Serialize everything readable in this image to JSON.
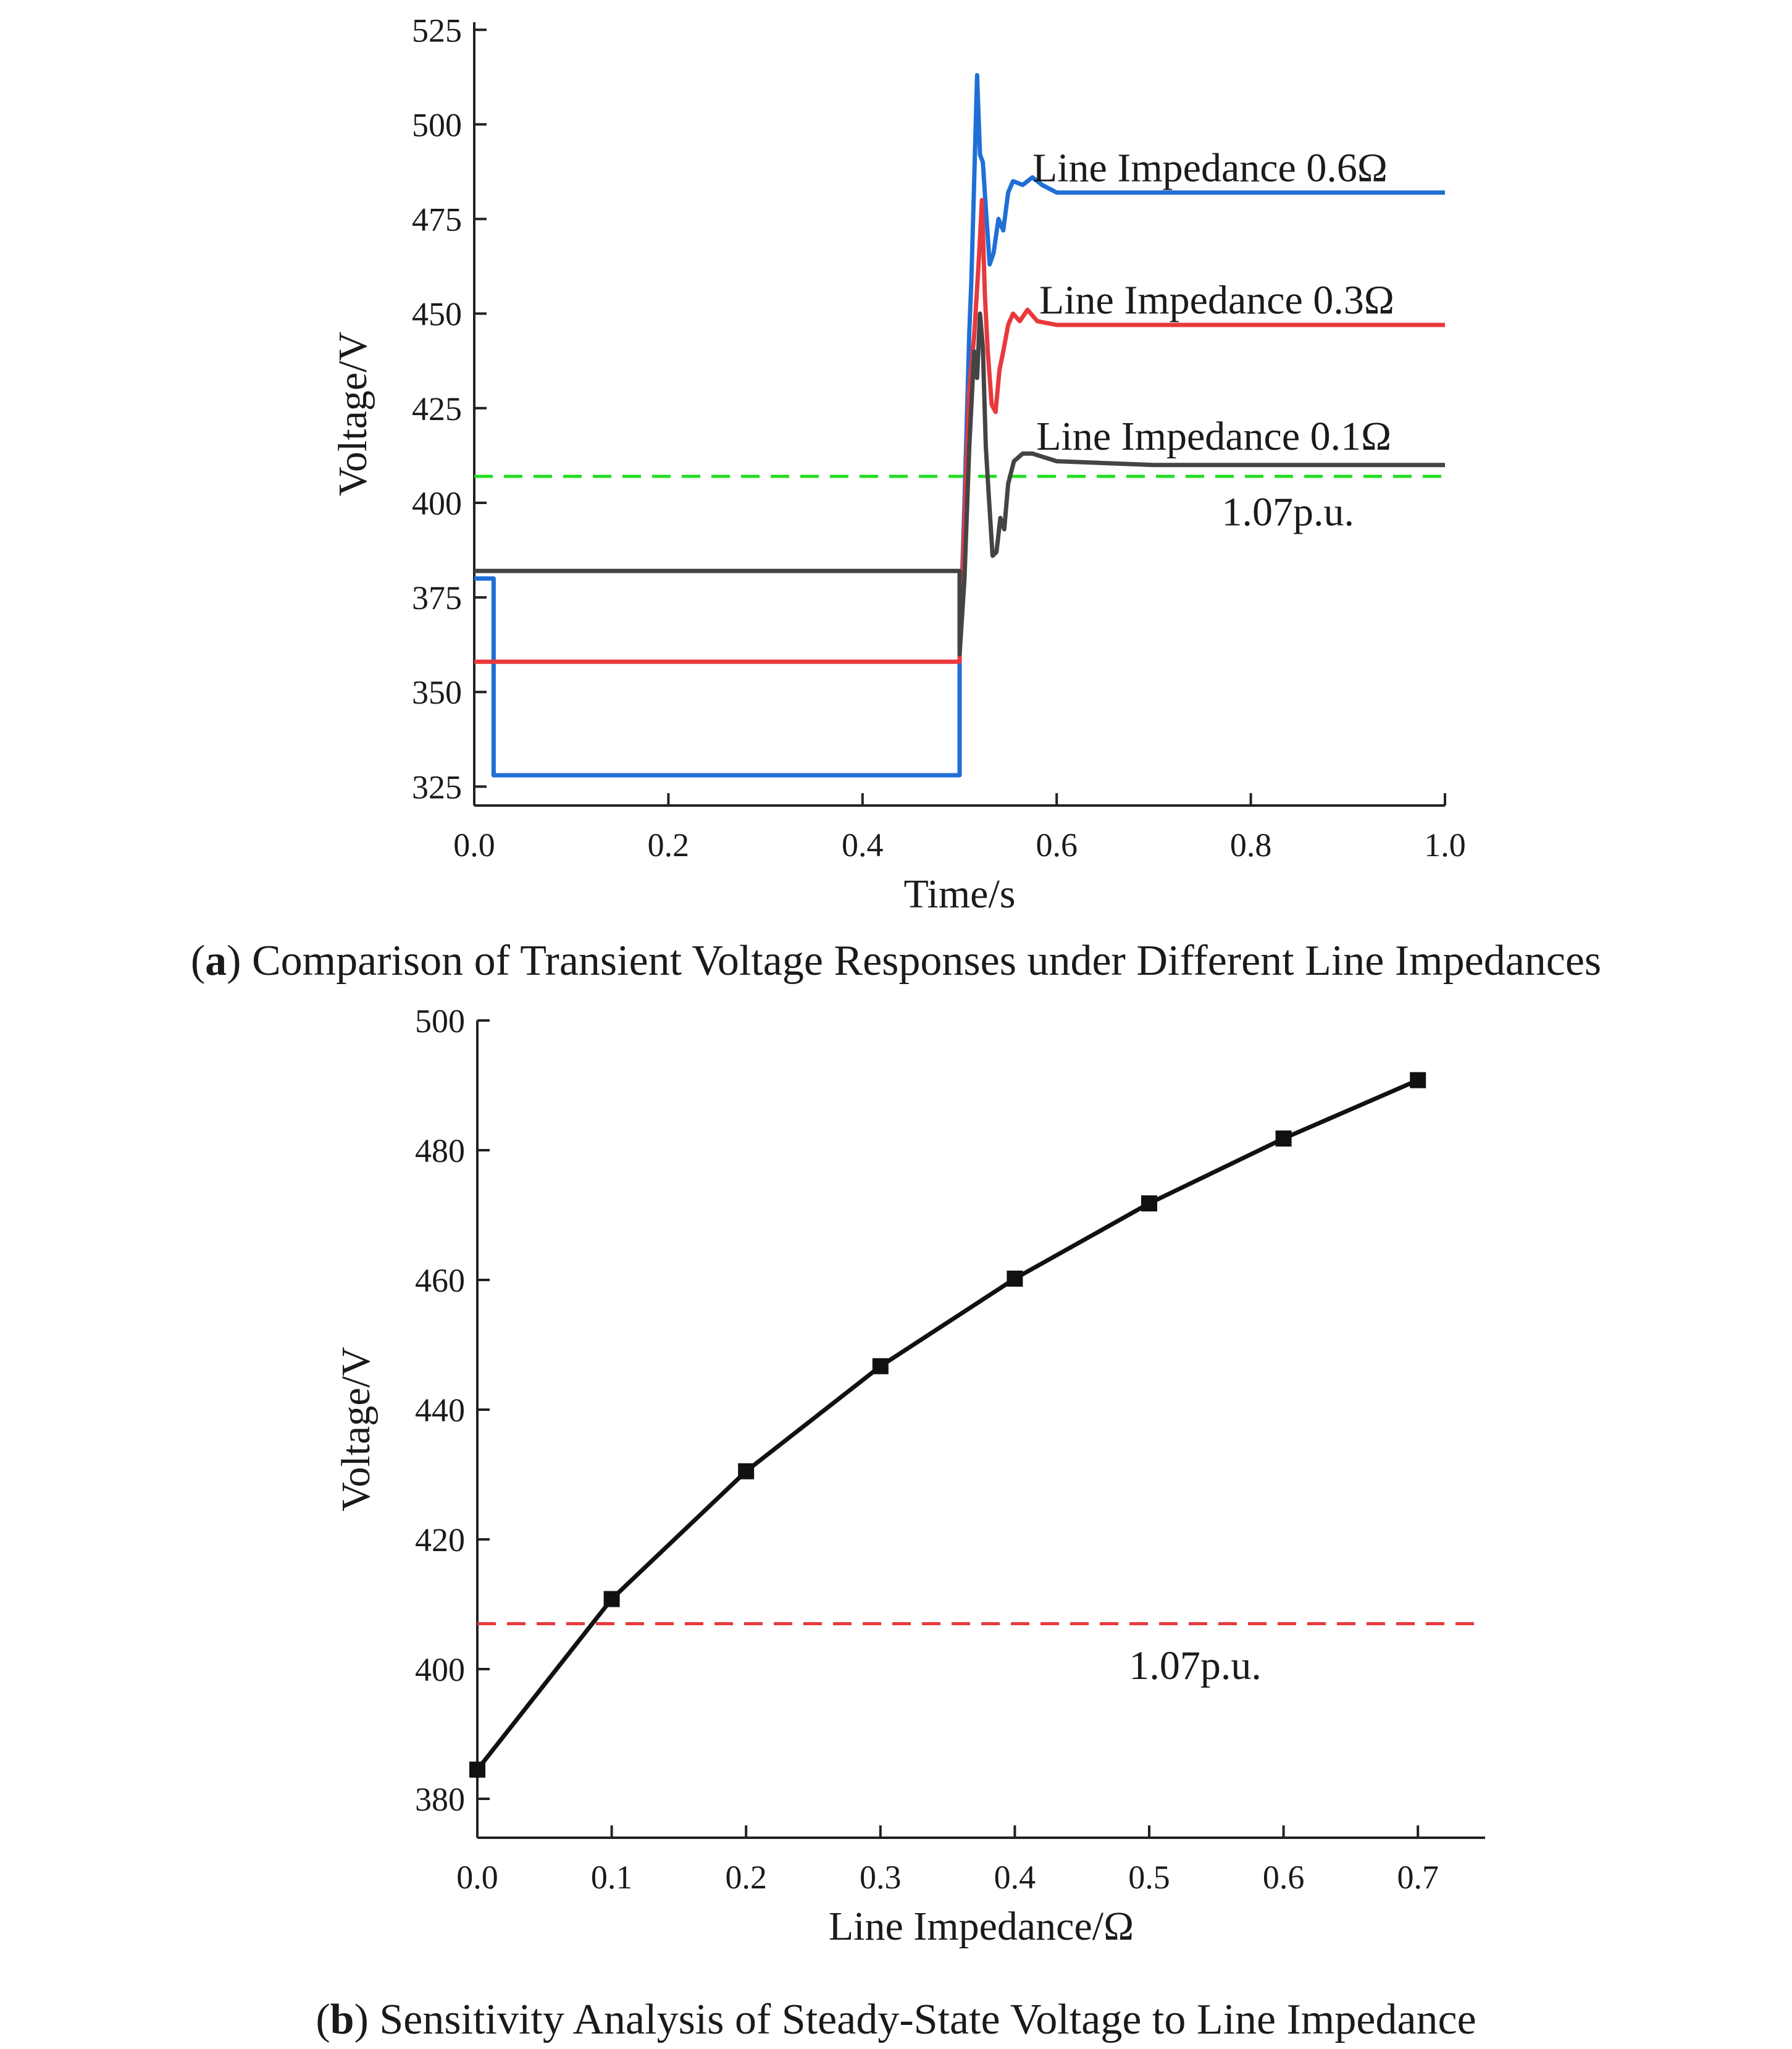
{
  "chart_data": [
    {
      "id": "a",
      "type": "line",
      "caption_letter": "a",
      "caption_text": "Comparison of Transient Voltage Responses under Different Line Impedances",
      "xlabel": "Time/s",
      "ylabel": "Voltage/V",
      "xlim": [
        0.0,
        1.0
      ],
      "ylim": [
        320,
        527
      ],
      "xticks": [
        "0.0",
        "0.2",
        "0.4",
        "0.6",
        "0.8",
        "1.0"
      ],
      "yticks": [
        "325",
        "350",
        "375",
        "400",
        "425",
        "450",
        "475",
        "500",
        "525"
      ],
      "grid": false,
      "reference_line": {
        "label": "1.07p.u.",
        "value": 407,
        "color": "#22dd22",
        "style": "dashed"
      },
      "series": [
        {
          "name": "Line Impedance  0.6Ω",
          "color": "#1f6fd6",
          "points": [
            [
              0.0,
              380
            ],
            [
              0.02,
              380
            ],
            [
              0.02,
              328
            ],
            [
              0.5,
              328
            ],
            [
              0.5,
              360
            ],
            [
              0.505,
              400
            ],
            [
              0.51,
              445
            ],
            [
              0.512,
              458
            ],
            [
              0.515,
              485
            ],
            [
              0.518,
              513
            ],
            [
              0.521,
              492
            ],
            [
              0.524,
              490
            ],
            [
              0.527,
              478
            ],
            [
              0.531,
              463
            ],
            [
              0.535,
              466
            ],
            [
              0.54,
              475
            ],
            [
              0.545,
              472
            ],
            [
              0.55,
              482
            ],
            [
              0.555,
              485
            ],
            [
              0.565,
              484
            ],
            [
              0.575,
              486
            ],
            [
              0.585,
              484
            ],
            [
              0.6,
              482
            ],
            [
              0.65,
              482
            ],
            [
              0.7,
              482
            ],
            [
              1.0,
              482
            ]
          ]
        },
        {
          "name": "Line Impedance 0.3Ω",
          "color": "#e8393d",
          "points": [
            [
              0.0,
              358
            ],
            [
              0.5,
              358
            ],
            [
              0.5,
              360
            ],
            [
              0.505,
              395
            ],
            [
              0.51,
              430
            ],
            [
              0.515,
              444
            ],
            [
              0.52,
              465
            ],
            [
              0.523,
              480
            ],
            [
              0.526,
              455
            ],
            [
              0.529,
              440
            ],
            [
              0.533,
              426
            ],
            [
              0.537,
              424
            ],
            [
              0.541,
              435
            ],
            [
              0.545,
              440
            ],
            [
              0.55,
              447
            ],
            [
              0.555,
              450
            ],
            [
              0.562,
              448
            ],
            [
              0.57,
              451
            ],
            [
              0.58,
              448
            ],
            [
              0.6,
              447
            ],
            [
              0.7,
              447
            ],
            [
              1.0,
              447
            ]
          ]
        },
        {
          "name": "Line Impedance 0.1Ω",
          "color": "#444444",
          "points": [
            [
              0.0,
              382
            ],
            [
              0.5,
              382
            ],
            [
              0.5,
              360
            ],
            [
              0.505,
              380
            ],
            [
              0.51,
              415
            ],
            [
              0.515,
              440
            ],
            [
              0.518,
              433
            ],
            [
              0.521,
              450
            ],
            [
              0.524,
              441
            ],
            [
              0.527,
              415
            ],
            [
              0.53,
              402
            ],
            [
              0.534,
              386
            ],
            [
              0.538,
              387
            ],
            [
              0.542,
              396
            ],
            [
              0.546,
              393
            ],
            [
              0.55,
              405
            ],
            [
              0.556,
              411
            ],
            [
              0.565,
              413
            ],
            [
              0.575,
              413
            ],
            [
              0.6,
              411
            ],
            [
              0.7,
              410
            ],
            [
              1.0,
              410
            ]
          ]
        }
      ],
      "annotations": [
        {
          "text": "Line Impedance  0.6Ω",
          "x": 0.575,
          "y": 485
        },
        {
          "text": "Line Impedance 0.3Ω",
          "x": 0.582,
          "y": 450
        },
        {
          "text": "Line Impedance 0.1Ω",
          "x": 0.579,
          "y": 414
        },
        {
          "text": "1.07p.u.",
          "x": 0.77,
          "y": 394
        }
      ]
    },
    {
      "id": "b",
      "type": "line",
      "caption_letter": "b",
      "caption_text": "Sensitivity Analysis of Steady-State Voltage to Line Impedance",
      "xlabel": "Line Impedance/Ω",
      "ylabel": "Voltage/V",
      "xlim": [
        0.0,
        0.75
      ],
      "ylim": [
        374,
        500
      ],
      "xticks": [
        "0.0",
        "0.1",
        "0.2",
        "0.3",
        "0.4",
        "0.5",
        "0.6",
        "0.7"
      ],
      "yticks": [
        "380",
        "400",
        "420",
        "440",
        "460",
        "480",
        "500"
      ],
      "grid": false,
      "reference_line": {
        "label": "1.07p.u.",
        "value": 407,
        "color": "#e8393d",
        "style": "dashed"
      },
      "series": [
        {
          "name": "",
          "color": "#111111",
          "marker": "square",
          "points": [
            [
              0.0,
              384.5
            ],
            [
              0.1,
              410.8
            ],
            [
              0.2,
              430.5
            ],
            [
              0.3,
              446.7
            ],
            [
              0.4,
              460.2
            ],
            [
              0.5,
              471.8
            ],
            [
              0.6,
              481.8
            ],
            [
              0.7,
              490.8
            ]
          ]
        }
      ],
      "annotations": [
        {
          "text": "1.07p.u.",
          "x": 0.485,
          "y": 398.5
        }
      ]
    }
  ]
}
